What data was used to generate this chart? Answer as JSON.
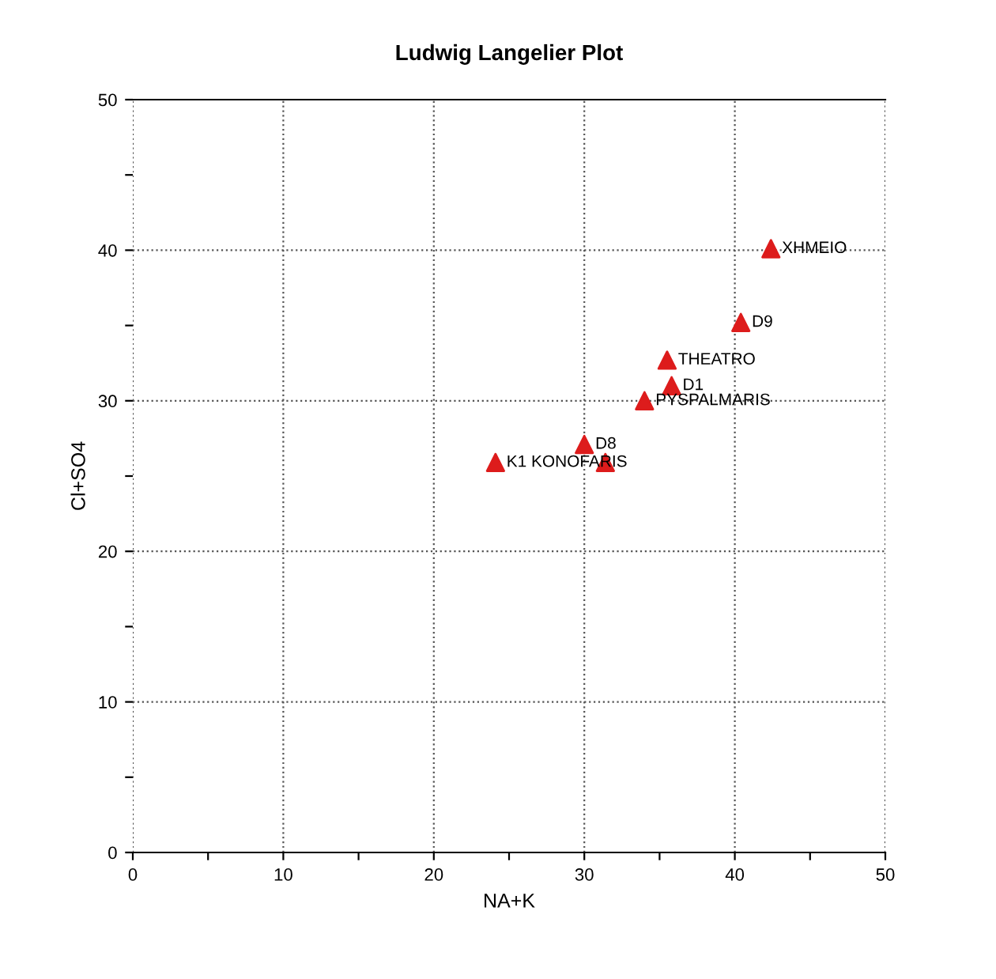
{
  "chart_data": {
    "type": "scatter",
    "title": "Ludwig Langelier Plot",
    "xlabel": "NA+K",
    "ylabel": "Cl+SO4",
    "x": [
      42.4,
      40.4,
      35.5,
      35.8,
      34.0,
      30.0,
      24.1,
      31.4
    ],
    "series": [
      {
        "color": "#dd1c1c",
        "values": [
          40.1,
          35.2,
          32.7,
          31.0,
          30.0,
          27.1,
          25.9,
          25.9
        ]
      }
    ],
    "marker": "triangle",
    "grid": true,
    "line_style": "dotted",
    "xlim": [
      0,
      50
    ],
    "ylim": [
      0,
      50
    ],
    "xticks": [
      0,
      {
        "value": 5,
        "label": null
      },
      10,
      {
        "value": 15,
        "label": null
      },
      20,
      {
        "value": 25,
        "label": null
      },
      30,
      {
        "value": 35,
        "label": null
      },
      40,
      {
        "value": 45,
        "label": null
      },
      50
    ],
    "yticks": [
      0,
      {
        "value": 5,
        "label": null
      },
      10,
      {
        "value": 15,
        "label": null
      },
      20,
      {
        "value": 25,
        "label": null
      },
      30,
      {
        "value": 35,
        "label": null
      },
      40,
      {
        "value": 45,
        "label": null
      },
      50
    ],
    "annotations": [
      {
        "text": "XHMEIO",
        "x": 42.4,
        "y": 40.1
      },
      {
        "text": "D9",
        "x": 40.4,
        "y": 35.2
      },
      {
        "text": "THEATRO",
        "x": 35.5,
        "y": 32.7
      },
      {
        "text": "D1",
        "x": 35.8,
        "y": 31.0
      },
      {
        "text": "PYSPALMARIS",
        "x": 34.0,
        "y": 30.0
      },
      {
        "text": "D8",
        "x": 30.0,
        "y": 27.1
      },
      {
        "text": "K1 KONOFARIS",
        "x": 24.1,
        "y": 25.9
      }
    ]
  }
}
